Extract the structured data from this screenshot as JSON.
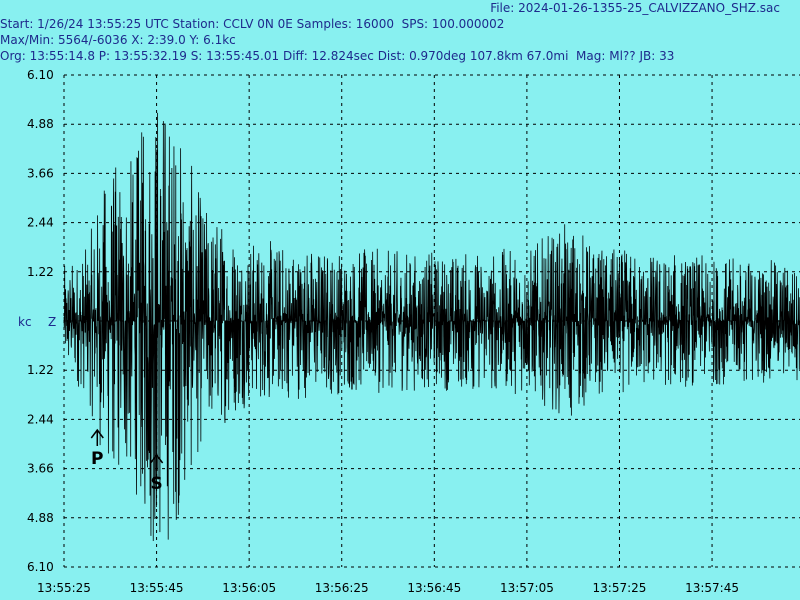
{
  "header": {
    "file": "File: 2024-01-26-1355-25_CALVIZZANO_SHZ.sac",
    "line1": "Start: 1/26/24 13:55:25 UTC Station: CCLV 0N 0E Samples: 16000  SPS: 100.000002",
    "line2": "Max/Min: 5564/-6036 X: 2:39.0 Y: 6.1kc",
    "line3": "Org: 13:55:14.8 P: 13:55:32.19 S: 13:55:45.01 Diff: 12.824sec Dist: 0.970deg 107.8km 67.0mi  Mag: Ml?? JB: 33"
  },
  "chart_data": {
    "type": "line",
    "ylabel": "kc",
    "channel": "Z",
    "y_ticks": [
      "6.10",
      "4.88",
      "3.66",
      "2.44",
      "1.22",
      "",
      "1.22",
      "2.44",
      "3.66",
      "4.88",
      "6.10"
    ],
    "y_tick_values": [
      6.1,
      4.88,
      3.66,
      2.44,
      1.22,
      0,
      -1.22,
      -2.44,
      -3.66,
      -4.88,
      -6.1
    ],
    "ylim": [
      -6.1,
      6.1
    ],
    "x_ticks": [
      "13:55:25",
      "13:55:45",
      "13:56:05",
      "13:56:25",
      "13:56:45",
      "13:57:05",
      "13:57:25",
      "13:57:45"
    ],
    "x_tick_seconds": [
      0,
      20,
      40,
      60,
      80,
      100,
      120,
      140
    ],
    "xlim_seconds": [
      0,
      159
    ],
    "phases": [
      {
        "label": "P",
        "time_s": 7.19
      },
      {
        "label": "S",
        "time_s": 20.01
      }
    ],
    "envelope": [
      {
        "t": 0,
        "amp": 1.2
      },
      {
        "t": 5,
        "amp": 1.6
      },
      {
        "t": 7.2,
        "amp": 2.6
      },
      {
        "t": 10,
        "amp": 3.4
      },
      {
        "t": 15,
        "amp": 3.6
      },
      {
        "t": 18,
        "amp": 4.6
      },
      {
        "t": 20,
        "amp": 5.4
      },
      {
        "t": 22,
        "amp": 5.0
      },
      {
        "t": 25,
        "amp": 4.2
      },
      {
        "t": 30,
        "amp": 2.6
      },
      {
        "t": 40,
        "amp": 1.8
      },
      {
        "t": 60,
        "amp": 1.6
      },
      {
        "t": 80,
        "amp": 1.5
      },
      {
        "t": 100,
        "amp": 1.6
      },
      {
        "t": 110,
        "amp": 2.2
      },
      {
        "t": 115,
        "amp": 1.6
      },
      {
        "t": 140,
        "amp": 1.4
      },
      {
        "t": 159,
        "amp": 1.3
      }
    ],
    "max_count": 5564,
    "min_count": -6036,
    "grid": true,
    "colors": {
      "background": "#88f0f0",
      "trace": "#000000",
      "text": "#1e2a8c",
      "grid": "#000000"
    }
  }
}
